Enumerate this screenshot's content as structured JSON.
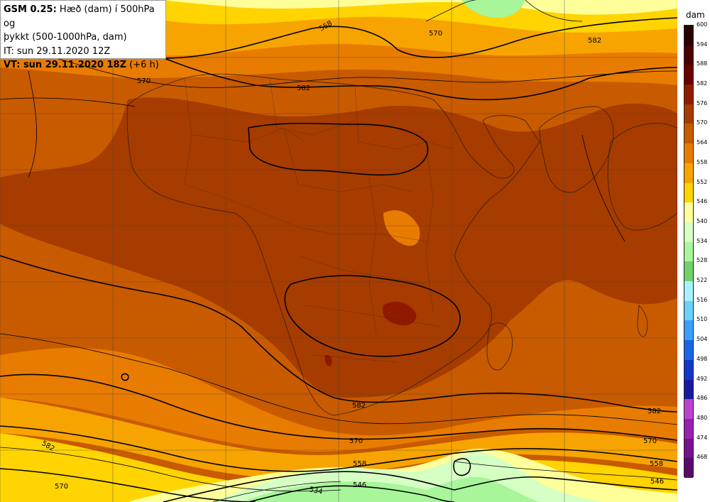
{
  "header": {
    "model": "GSM 0.25:",
    "title_rest": " Hæð (dam) í 500hPa og",
    "title_line2": "þykkt (500-1000hPa, dam)",
    "init_time": "IT: sun 29.11.2020 12Z",
    "valid_label": "VT: sun 29.11.2020 18Z",
    "valid_offset": " (+6 h)"
  },
  "legend": {
    "unit": "dam",
    "levels": [
      {
        "value": "600",
        "color": "#2a0000"
      },
      {
        "value": "594",
        "color": "#4a0000"
      },
      {
        "value": "588",
        "color": "#6b0000"
      },
      {
        "value": "582",
        "color": "#8f1a00"
      },
      {
        "value": "576",
        "color": "#a63c00"
      },
      {
        "value": "570",
        "color": "#c85a00"
      },
      {
        "value": "564",
        "color": "#e87c00"
      },
      {
        "value": "558",
        "color": "#f7a400"
      },
      {
        "value": "552",
        "color": "#ffd400"
      },
      {
        "value": "546",
        "color": "#ffff99"
      },
      {
        "value": "540",
        "color": "#d6ffc4"
      },
      {
        "value": "534",
        "color": "#a8f59a"
      },
      {
        "value": "528",
        "color": "#6ed36a"
      },
      {
        "value": "522",
        "color": "#a6f2ff"
      },
      {
        "value": "516",
        "color": "#6cd0ff"
      },
      {
        "value": "510",
        "color": "#3aa0ff"
      },
      {
        "value": "504",
        "color": "#1a66e6"
      },
      {
        "value": "498",
        "color": "#1236c8"
      },
      {
        "value": "492",
        "color": "#1a1aa0"
      },
      {
        "value": "486",
        "color": "#c040d0"
      },
      {
        "value": "480",
        "color": "#9a20b0"
      },
      {
        "value": "474",
        "color": "#78108e"
      },
      {
        "value": "468",
        "color": "#560a6c"
      }
    ]
  },
  "contour_labels": [
    {
      "id": "a",
      "text": "558"
    },
    {
      "id": "b",
      "text": "570"
    },
    {
      "id": "c",
      "text": "582"
    },
    {
      "id": "d",
      "text": "570"
    },
    {
      "id": "e",
      "text": "582"
    },
    {
      "id": "f",
      "text": "582"
    },
    {
      "id": "g",
      "text": "582"
    },
    {
      "id": "h",
      "text": "582"
    },
    {
      "id": "i",
      "text": "570"
    },
    {
      "id": "j",
      "text": "570"
    },
    {
      "id": "k",
      "text": "558"
    },
    {
      "id": "l",
      "text": "558"
    },
    {
      "id": "m",
      "text": "546"
    },
    {
      "id": "n",
      "text": "546"
    },
    {
      "id": "o",
      "text": "534"
    },
    {
      "id": "p",
      "text": "570"
    }
  ]
}
